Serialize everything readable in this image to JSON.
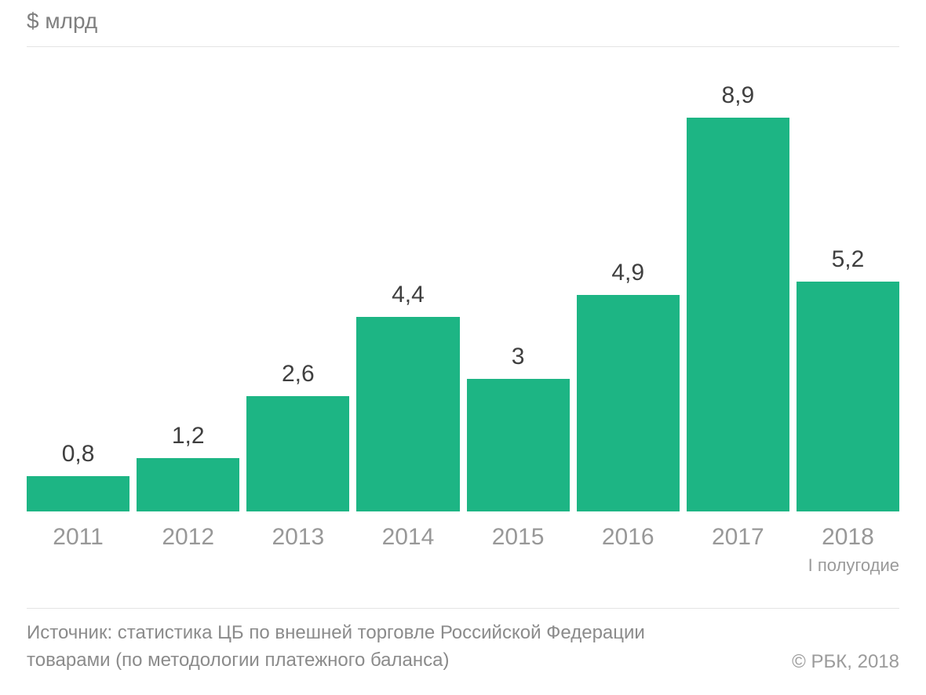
{
  "header": {
    "unit_label": "$ млрд"
  },
  "chart_data": {
    "type": "bar",
    "categories": [
      "2011",
      "2012",
      "2013",
      "2014",
      "2015",
      "2016",
      "2017",
      "2018"
    ],
    "values": [
      0.8,
      1.2,
      2.6,
      4.4,
      3,
      4.9,
      8.9,
      5.2
    ],
    "value_labels": [
      "0,8",
      "1,2",
      "2,6",
      "4,4",
      "3",
      "4,9",
      "8,9",
      "5,2"
    ],
    "x_note": "I полугодие",
    "bar_color": "#1db584",
    "ylabel": "$ млрд",
    "xlabel": "",
    "title": "",
    "ylim": [
      0,
      9.5
    ],
    "grid": false,
    "legend": false
  },
  "footer": {
    "source": "Источник: статистика ЦБ по внешней торговле Российской Федерации товарами (по методологии платежного баланса)",
    "copyright": "© РБК, 2018"
  }
}
